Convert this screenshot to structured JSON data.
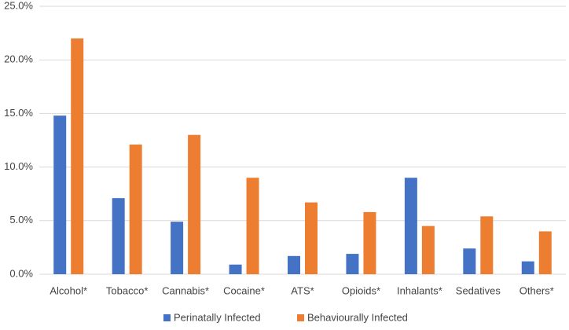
{
  "chart_data": {
    "type": "bar",
    "categories": [
      "Alcohol*",
      "Tobacco*",
      "Cannabis*",
      "Cocaine*",
      "ATS*",
      "Opioids*",
      "Inhalants*",
      "Sedatives",
      "Others*"
    ],
    "series": [
      {
        "name": "Perinatally Infected",
        "color": "#4472c4",
        "values": [
          14.8,
          7.1,
          4.9,
          0.9,
          1.7,
          1.9,
          9.0,
          2.4,
          1.2
        ]
      },
      {
        "name": "Behaviourally Infected",
        "color": "#ed7d31",
        "values": [
          22.0,
          12.1,
          13.0,
          9.0,
          6.7,
          5.8,
          4.5,
          5.4,
          4.0
        ]
      }
    ],
    "ylim": [
      0,
      25
    ],
    "yticks": [
      {
        "value": 0,
        "label": "0.0%"
      },
      {
        "value": 5,
        "label": "5.0%"
      },
      {
        "value": 10,
        "label": "10.0%"
      },
      {
        "value": 15,
        "label": "15.0%"
      },
      {
        "value": 20,
        "label": "20.0%"
      },
      {
        "value": 25,
        "label": "25.0%"
      }
    ],
    "grid": true,
    "legend": "bottom"
  }
}
